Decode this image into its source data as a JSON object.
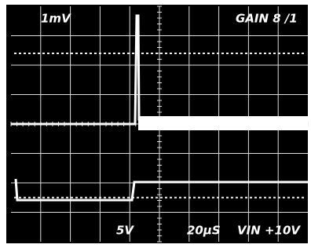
{
  "screen": {
    "top_left": "1mV",
    "top_right": "GAIN 8 /1",
    "bottom_volts": "5V",
    "bottom_time": "20µS",
    "bottom_right": "VIN +10V"
  }
}
